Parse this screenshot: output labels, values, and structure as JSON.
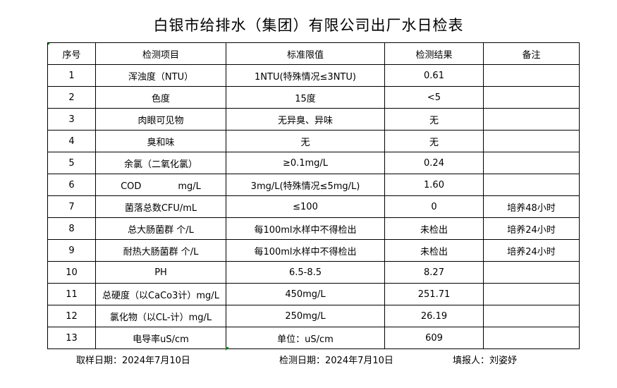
{
  "title": "白银市给排水（集团）有限公司出厂水日检表",
  "table": {
    "headers": [
      "序号",
      "检测项目",
      "标准限值",
      "检测结果",
      "备注"
    ],
    "rows": [
      [
        "1",
        "浑浊度（NTU）",
        "1NTU(特殊情况≤3NTU)",
        "0.61",
        ""
      ],
      [
        "2",
        "色度",
        "15度",
        "<5",
        ""
      ],
      [
        "3",
        "肉眼可见物",
        "无异臭、异味",
        "无",
        ""
      ],
      [
        "4",
        "臭和味",
        "无",
        "无",
        ""
      ],
      [
        "5",
        "余氯（二氧化氯）",
        "≥0.1mg/L",
        "0.24",
        ""
      ],
      [
        "6",
        "COD　　　　mg/L",
        "3mg/L(特殊情况≤5mg/L)",
        "1.60",
        ""
      ],
      [
        "7",
        "菌落总数CFU/mL",
        "≤100",
        "0",
        "培养48小时"
      ],
      [
        "8",
        "总大肠菌群 个/L",
        "每100ml水样中不得检出",
        "未检出",
        "培养24小时"
      ],
      [
        "9",
        "耐热大肠菌群 个/L",
        "每100ml水样中不得检出",
        "未检出",
        "培养24小时"
      ],
      [
        "10",
        "PH",
        "6.5-8.5",
        "8.27",
        ""
      ],
      [
        "11",
        "总硬度（以CaCo3计）mg/L",
        "450mg/L",
        "251.71",
        ""
      ],
      [
        "12",
        "氯化物（以CL-计）mg/L",
        "250mg/L",
        "26.19",
        ""
      ],
      [
        "13",
        "电导率uS/cm",
        "单位：uS/cm",
        "609",
        ""
      ]
    ]
  },
  "footer": {
    "sampling_date": "取样日期：2024年7月10日",
    "test_date": "检测日期：2024年7月10日",
    "reporter": "填报人：刘姿妤"
  }
}
